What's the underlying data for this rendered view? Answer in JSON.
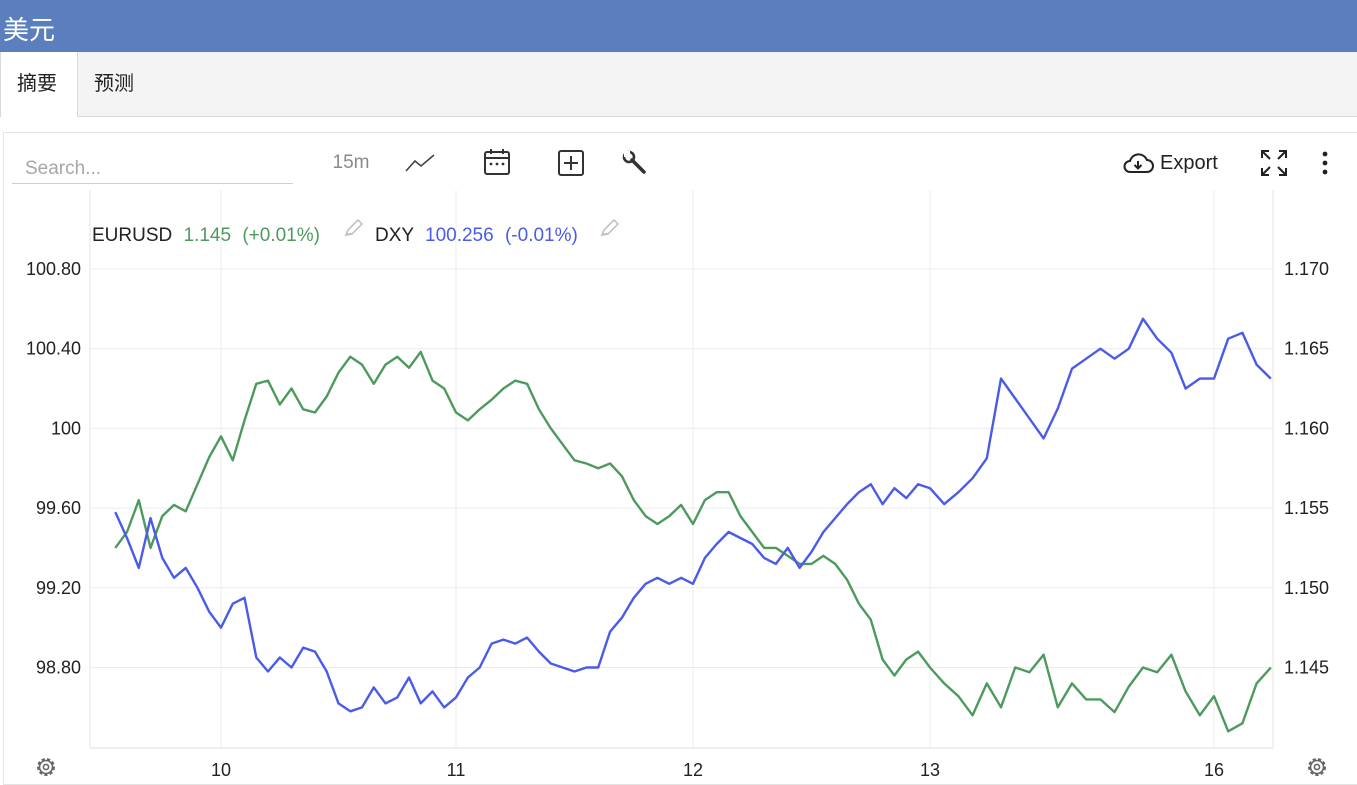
{
  "window": {
    "title": "美元"
  },
  "tabs": [
    {
      "label": "摘要",
      "active": true
    },
    {
      "label": "预测",
      "active": false
    }
  ],
  "toolbar": {
    "search_placeholder": "Search...",
    "interval": "15m",
    "export_label": "Export",
    "icons": [
      "line-chart-icon",
      "calendar-icon",
      "add-box-icon",
      "wrench-icon",
      "cloud-download-icon",
      "fullscreen-icon",
      "more-vertical-icon"
    ]
  },
  "colors": {
    "header": "#5b7fbe",
    "eurusd": "#4e9a5e",
    "dxy": "#4a5bea"
  },
  "chart_data": {
    "type": "line",
    "grid": true,
    "x_ticks": [
      "10",
      "11",
      "12",
      "13",
      "16"
    ],
    "y_left": {
      "ticks": [
        "100.80",
        "100.40",
        "100",
        "99.60",
        "99.20",
        "98.80"
      ],
      "range": [
        98.4,
        101.0
      ]
    },
    "y_right": {
      "ticks": [
        "1.170",
        "1.165",
        "1.160",
        "1.155",
        "1.150",
        "1.145"
      ],
      "range": [
        1.14,
        1.1725
      ]
    },
    "legend": [
      {
        "symbol": "EURUSD",
        "value": "1.145",
        "change": "(+0.01%)"
      },
      {
        "symbol": "DXY",
        "value": "100.256",
        "change": "(-0.01%)"
      }
    ],
    "series": [
      {
        "name": "EURUSD",
        "axis": "right",
        "x": [
          9.55,
          9.6,
          9.65,
          9.7,
          9.75,
          9.8,
          9.85,
          9.9,
          9.95,
          10.0,
          10.05,
          10.1,
          10.15,
          10.2,
          10.25,
          10.3,
          10.35,
          10.4,
          10.45,
          10.5,
          10.55,
          10.6,
          10.65,
          10.7,
          10.75,
          10.8,
          10.85,
          10.9,
          10.95,
          11.0,
          11.05,
          11.1,
          11.15,
          11.2,
          11.25,
          11.3,
          11.35,
          11.4,
          11.45,
          11.5,
          11.55,
          11.6,
          11.65,
          11.7,
          11.75,
          11.8,
          11.85,
          11.9,
          11.95,
          12.0,
          12.05,
          12.1,
          12.15,
          12.2,
          12.25,
          12.3,
          12.35,
          12.4,
          12.45,
          12.5,
          12.55,
          12.6,
          12.65,
          12.7,
          12.75,
          12.8,
          12.85,
          12.9,
          12.95,
          13.0,
          13.05,
          13.1,
          13.15,
          13.2,
          13.25,
          13.3,
          13.35,
          13.4,
          13.45,
          13.5,
          13.55,
          13.6,
          13.65,
          13.7,
          13.75,
          13.8,
          13.85,
          13.9,
          13.95,
          14.0,
          14.05,
          14.1,
          14.15,
          14.2
        ],
        "values": [
          1.1525,
          1.1535,
          1.1555,
          1.1525,
          1.1545,
          1.1552,
          1.1548,
          1.1565,
          1.1582,
          1.1595,
          1.158,
          1.1605,
          1.1628,
          1.163,
          1.1615,
          1.1625,
          1.1612,
          1.161,
          1.162,
          1.1635,
          1.1645,
          1.164,
          1.1628,
          1.164,
          1.1645,
          1.1638,
          1.1648,
          1.163,
          1.1625,
          1.161,
          1.1605,
          1.1612,
          1.1618,
          1.1625,
          1.163,
          1.1628,
          1.1612,
          1.16,
          1.159,
          1.158,
          1.1578,
          1.1575,
          1.1578,
          1.157,
          1.1555,
          1.1545,
          1.154,
          1.1545,
          1.1552,
          1.154,
          1.1555,
          1.156,
          1.156,
          1.1545,
          1.1535,
          1.1525,
          1.1525,
          1.152,
          1.1515,
          1.1515,
          1.152,
          1.1515,
          1.1505,
          1.149,
          1.148,
          1.1455,
          1.1445,
          1.1455,
          1.146,
          1.145,
          1.144,
          1.1432,
          1.142,
          1.144,
          1.1425,
          1.145,
          1.1447,
          1.1458,
          1.1425,
          1.144,
          1.143,
          1.143,
          1.1422,
          1.1438,
          1.145,
          1.1447,
          1.1458,
          1.1435,
          1.142,
          1.1432,
          1.141,
          1.1415,
          1.144,
          1.145
        ]
      },
      {
        "name": "DXY",
        "axis": "left",
        "x": [
          9.55,
          9.6,
          9.65,
          9.7,
          9.75,
          9.8,
          9.85,
          9.9,
          9.95,
          10.0,
          10.05,
          10.1,
          10.15,
          10.2,
          10.25,
          10.3,
          10.35,
          10.4,
          10.45,
          10.5,
          10.55,
          10.6,
          10.65,
          10.7,
          10.75,
          10.8,
          10.85,
          10.9,
          10.95,
          11.0,
          11.05,
          11.1,
          11.15,
          11.2,
          11.25,
          11.3,
          11.35,
          11.4,
          11.45,
          11.5,
          11.55,
          11.6,
          11.65,
          11.7,
          11.75,
          11.8,
          11.85,
          11.9,
          11.95,
          12.0,
          12.05,
          12.1,
          12.15,
          12.2,
          12.25,
          12.3,
          12.35,
          12.4,
          12.45,
          12.5,
          12.55,
          12.6,
          12.65,
          12.7,
          12.75,
          12.8,
          12.85,
          12.9,
          12.95,
          13.0,
          13.05,
          13.1,
          13.15,
          13.2,
          13.25,
          13.3,
          13.35,
          13.4,
          13.45,
          13.5,
          13.55,
          13.6,
          13.65,
          13.7,
          13.75,
          13.8,
          13.85,
          13.9,
          13.95,
          14.0,
          14.05,
          14.1,
          14.15,
          14.2
        ],
        "values": [
          99.58,
          99.45,
          99.3,
          99.55,
          99.35,
          99.25,
          99.3,
          99.2,
          99.08,
          99.0,
          99.12,
          99.15,
          98.85,
          98.78,
          98.85,
          98.8,
          98.9,
          98.88,
          98.78,
          98.62,
          98.58,
          98.6,
          98.7,
          98.62,
          98.65,
          98.75,
          98.62,
          98.68,
          98.6,
          98.65,
          98.75,
          98.8,
          98.92,
          98.94,
          98.92,
          98.95,
          98.88,
          98.82,
          98.8,
          98.78,
          98.8,
          98.8,
          98.98,
          99.05,
          99.15,
          99.22,
          99.25,
          99.22,
          99.25,
          99.22,
          99.35,
          99.42,
          99.48,
          99.45,
          99.42,
          99.35,
          99.32,
          99.4,
          99.3,
          99.38,
          99.48,
          99.55,
          99.62,
          99.68,
          99.72,
          99.62,
          99.7,
          99.65,
          99.72,
          99.7,
          99.62,
          99.68,
          99.75,
          99.85,
          100.25,
          100.15,
          100.05,
          99.95,
          100.1,
          100.3,
          100.35,
          100.4,
          100.35,
          100.4,
          100.55,
          100.45,
          100.38,
          100.2,
          100.25,
          100.25,
          100.45,
          100.48,
          100.32,
          100.25
        ]
      }
    ]
  }
}
